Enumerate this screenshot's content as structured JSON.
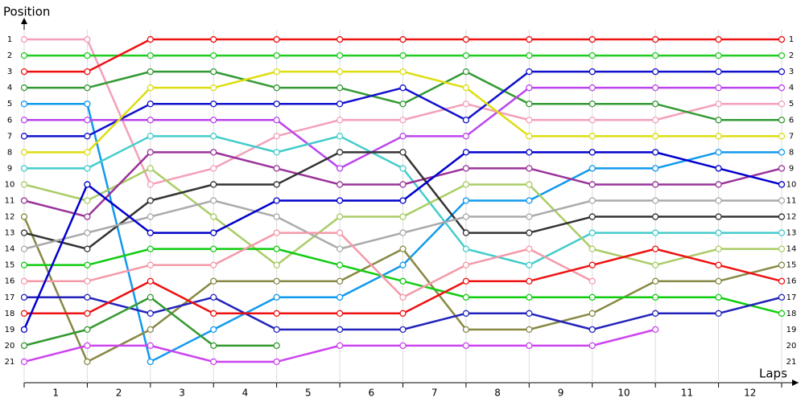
{
  "chart_data": {
    "type": "line",
    "y_axis_label": "Position",
    "x_axis_label": "Laps",
    "x": [
      0,
      1,
      2,
      3,
      4,
      5,
      6,
      7,
      8,
      9,
      10,
      11,
      12
    ],
    "xlim": [
      0,
      12
    ],
    "xticks": [
      {
        "value": 0.5,
        "label": "1"
      },
      {
        "value": 1.5,
        "label": "2"
      },
      {
        "value": 2.5,
        "label": "3"
      },
      {
        "value": 3.5,
        "label": "4"
      },
      {
        "value": 4.5,
        "label": "5"
      },
      {
        "value": 5.5,
        "label": "6"
      },
      {
        "value": 6.5,
        "label": "7"
      },
      {
        "value": 7.5,
        "label": "8"
      },
      {
        "value": 8.5,
        "label": "9"
      },
      {
        "value": 9.5,
        "label": "10"
      },
      {
        "value": 10.5,
        "label": "11"
      },
      {
        "value": 11.5,
        "label": "12"
      }
    ],
    "ylim": [
      22.3,
      0
    ],
    "yticks": [
      1,
      2,
      3,
      4,
      5,
      6,
      7,
      8,
      9,
      10,
      11,
      12,
      13,
      14,
      15,
      16,
      17,
      18,
      19,
      20,
      21
    ],
    "series": [
      {
        "color": "#f4a0b8",
        "values": [
          1,
          1,
          10,
          9,
          7,
          6,
          6,
          5,
          6,
          6,
          6,
          5,
          5
        ]
      },
      {
        "color": "#22cc22",
        "values": [
          2,
          2,
          2,
          2,
          2,
          2,
          2,
          2,
          2,
          2,
          2,
          2,
          2
        ]
      },
      {
        "color": "#ee1111",
        "values": [
          3,
          3,
          1,
          1,
          1,
          1,
          1,
          1,
          1,
          1,
          1,
          1,
          1
        ]
      },
      {
        "color": "#339933",
        "values": [
          4,
          4,
          3,
          3,
          4,
          4,
          5,
          3,
          5,
          5,
          5,
          6,
          6
        ]
      },
      {
        "color": "#1199ee",
        "values": [
          5,
          5,
          21,
          19,
          17,
          17,
          15,
          11,
          11,
          9,
          9,
          8,
          8
        ]
      },
      {
        "color": "#bb44ee",
        "values": [
          6,
          6,
          6,
          6,
          6,
          9,
          7,
          7,
          4,
          4,
          4,
          4,
          4
        ]
      },
      {
        "color": "#1111cc",
        "values": [
          7,
          7,
          5,
          5,
          5,
          5,
          4,
          6,
          3,
          3,
          3,
          3,
          3
        ]
      },
      {
        "color": "#dddd11",
        "values": [
          8,
          8,
          4,
          4,
          3,
          3,
          3,
          4,
          7,
          7,
          7,
          7,
          7
        ]
      },
      {
        "color": "#44cccc",
        "values": [
          9,
          9,
          7,
          7,
          8,
          7,
          9,
          14,
          15,
          13,
          13,
          13,
          13
        ]
      },
      {
        "color": "#aacc66",
        "values": [
          10,
          11,
          9,
          12,
          15,
          12,
          12,
          10,
          10,
          14,
          15,
          14,
          14
        ]
      },
      {
        "color": "#993399",
        "values": [
          11,
          12,
          8,
          8,
          9,
          10,
          10,
          9,
          9,
          10,
          10,
          10,
          9
        ]
      },
      {
        "color": "#888844",
        "values": [
          12,
          21,
          19,
          16,
          16,
          16,
          14,
          19,
          19,
          18,
          16,
          16,
          15
        ]
      },
      {
        "color": "#333333",
        "values": [
          13,
          14,
          11,
          10,
          10,
          8,
          8,
          13,
          13,
          12,
          12,
          12,
          12
        ]
      },
      {
        "color": "#aaaaaa",
        "values": [
          14,
          13,
          12,
          11,
          12,
          14,
          13,
          12,
          12,
          11,
          11,
          11,
          11
        ]
      },
      {
        "color": "#11cc11",
        "values": [
          15,
          15,
          14,
          14,
          14,
          15,
          16,
          17,
          17,
          17,
          17,
          17,
          18
        ]
      },
      {
        "color": "#f49aaa",
        "values": [
          16,
          16,
          15,
          15,
          13,
          13,
          17,
          15,
          14,
          16,
          null,
          null,
          null
        ]
      },
      {
        "color": "#2222bb",
        "values": [
          17,
          17,
          18,
          17,
          19,
          19,
          19,
          18,
          18,
          19,
          18,
          18,
          17
        ]
      },
      {
        "color": "#ee1111",
        "values": [
          18,
          18,
          16,
          18,
          18,
          18,
          18,
          16,
          16,
          15,
          14,
          15,
          16
        ]
      },
      {
        "color": "#0000cc",
        "values": [
          19,
          10,
          13,
          13,
          11,
          11,
          11,
          8,
          8,
          8,
          8,
          9,
          10
        ]
      },
      {
        "color": "#33992f",
        "values": [
          20,
          19,
          17,
          20,
          20,
          null,
          null,
          null,
          null,
          null,
          null,
          null,
          null
        ]
      },
      {
        "color": "#cc44ee",
        "values": [
          21,
          20,
          20,
          21,
          21,
          20,
          20,
          20,
          20,
          20,
          19,
          null,
          null
        ]
      }
    ]
  }
}
